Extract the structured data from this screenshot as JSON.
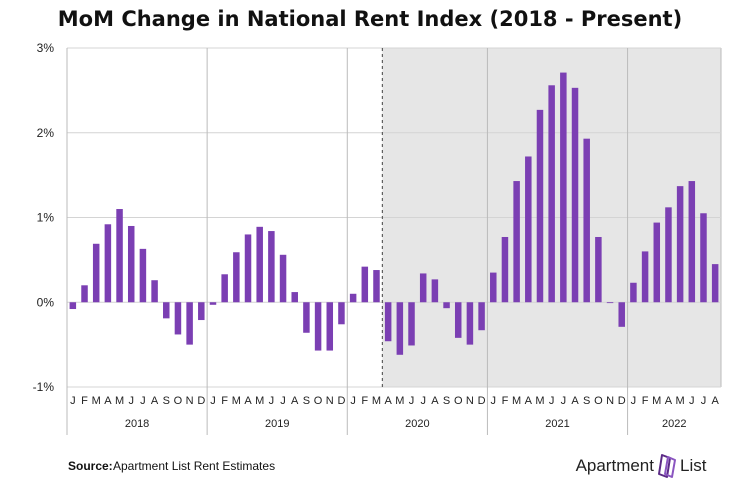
{
  "chart_data": {
    "type": "bar",
    "title": "MoM Change in National Rent Index (2018 - Present)",
    "ylim": [
      -1,
      3
    ],
    "yticks": [
      "3%",
      "2%",
      "1%",
      "0%",
      "-1%"
    ],
    "ytick_values": [
      3,
      2,
      1,
      0,
      -1
    ],
    "bar_color": "#7b3fb3",
    "shade_color": "#e6e6e6",
    "shaded_from": "2020-04",
    "years": [
      {
        "label": "2018",
        "months": [
          "J",
          "F",
          "M",
          "A",
          "M",
          "J",
          "J",
          "A",
          "S",
          "O",
          "N",
          "D"
        ],
        "values": [
          -0.08,
          0.2,
          0.69,
          0.92,
          1.1,
          0.9,
          0.63,
          0.26,
          -0.19,
          -0.38,
          -0.5,
          -0.21
        ]
      },
      {
        "label": "2019",
        "months": [
          "J",
          "F",
          "M",
          "A",
          "M",
          "J",
          "J",
          "A",
          "S",
          "O",
          "N",
          "D"
        ],
        "values": [
          -0.03,
          0.33,
          0.59,
          0.8,
          0.89,
          0.84,
          0.56,
          0.12,
          -0.36,
          -0.57,
          -0.57,
          -0.26
        ]
      },
      {
        "label": "2020",
        "months": [
          "J",
          "F",
          "M",
          "A",
          "M",
          "J",
          "J",
          "A",
          "S",
          "O",
          "N",
          "D"
        ],
        "values": [
          0.1,
          0.42,
          0.38,
          -0.46,
          -0.62,
          -0.51,
          0.34,
          0.27,
          -0.07,
          -0.42,
          -0.5,
          -0.33
        ]
      },
      {
        "label": "2021",
        "months": [
          "J",
          "F",
          "M",
          "A",
          "M",
          "J",
          "J",
          "A",
          "S",
          "O",
          "N",
          "D"
        ],
        "values": [
          0.35,
          0.77,
          1.43,
          1.72,
          2.27,
          2.56,
          2.71,
          2.53,
          1.93,
          0.77,
          -0.01,
          -0.29
        ]
      },
      {
        "label": "2022",
        "months": [
          "J",
          "F",
          "M",
          "A",
          "M",
          "J",
          "J",
          "A"
        ],
        "values": [
          0.23,
          0.6,
          0.94,
          1.12,
          1.37,
          1.43,
          1.05,
          0.45
        ]
      }
    ]
  },
  "source": {
    "label": "Source:",
    "text": "Apartment List Rent Estimates"
  },
  "logo": {
    "left": "Apartment",
    "right": "List"
  }
}
